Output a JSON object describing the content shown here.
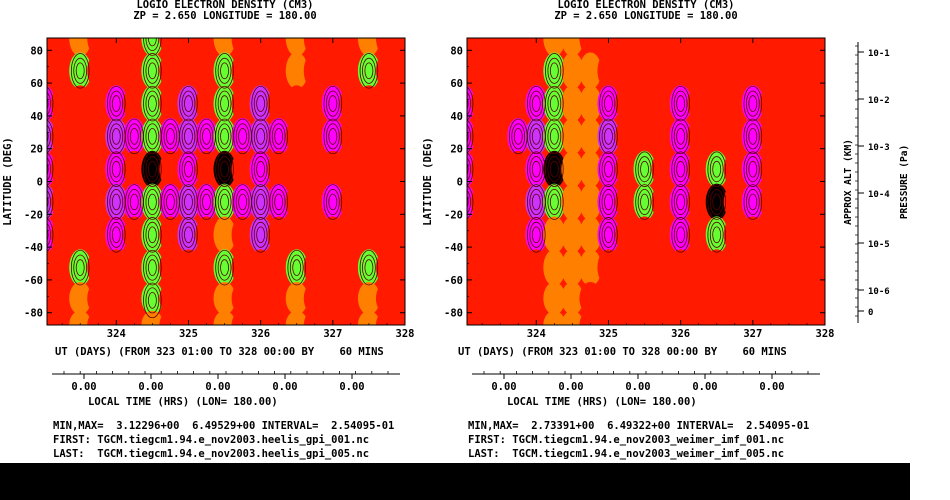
{
  "colors": {
    "red": "#ff1a00",
    "magenta": "#ff00ff",
    "violet": "#cc33ff",
    "orange": "#ff8000",
    "green": "#66ff33",
    "dark": "#000000",
    "contour": "#5a0000"
  },
  "panels": [
    {
      "title1": "LOGIO ELECTRON DENSITY (CM3)",
      "title2": "ZP =      2.650 LONGITUDE =    180.00",
      "ylabel": "LATITUDE (DEG)",
      "y_ticks": [
        "80",
        "60",
        "40",
        "20",
        "0",
        "-20",
        "-40",
        "-60",
        "-80"
      ],
      "x_ticks": [
        "324",
        "325",
        "326",
        "327",
        "328"
      ],
      "ut_line": "UT (DAYS) (FROM 323 01:00 TO 328 00:00 BY    60 MINS",
      "lt_ticks": [
        "0.00",
        "0.00",
        "0.00",
        "0.00",
        "0.00"
      ],
      "lt_label": "LOCAL TIME (HRS) (LON= 180.00)",
      "minmax": "MIN,MAX=  3.12296+00  6.49529+00 INTERVAL=  2.54095-01",
      "first": "FIRST: TGCM.tiegcm1.94.e_nov2003.heelis_gpi_001.nc",
      "last": "LAST:  TGCM.tiegcm1.94.e_nov2003.heelis_gpi_005.nc"
    },
    {
      "title1": "LOGIO ELECTRON DENSITY (CM3)",
      "title2": "ZP =      2.650 LONGITUDE =    180.00",
      "ylabel": "LATITUDE (DEG)",
      "y_ticks": [
        "80",
        "60",
        "40",
        "20",
        "0",
        "-20",
        "-40",
        "-60",
        "-80"
      ],
      "x_ticks": [
        "324",
        "325",
        "326",
        "327",
        "328"
      ],
      "ut_line": "UT (DAYS) (FROM 323 01:00 TO 328 00:00 BY    60 MINS",
      "lt_ticks": [
        "0.00",
        "0.00",
        "0.00",
        "0.00",
        "0.00"
      ],
      "lt_label": "LOCAL TIME (HRS) (LON= 180.00)",
      "minmax": "MIN,MAX=  2.73391+00  6.49322+00 INTERVAL=  2.54095-01",
      "first": "FIRST: TGCM.tiegcm1.94.e_nov2003_weimer_imf_001.nc",
      "last": "LAST:  TGCM.tiegcm1.94.e_nov2003_weimer_imf_005.nc"
    }
  ],
  "right_axis": {
    "ticks": [
      "10-1",
      "10-2",
      "10-3",
      "10-4",
      "10-5",
      "10-6",
      "0"
    ],
    "label1": "APPROX ALT (KM)",
    "label2": "PRESSURE (Pa)"
  },
  "chart_data": [
    {
      "type": "heatmap",
      "title": "LOGIO ELECTRON DENSITY (CM3)",
      "xlabel": "UT (DAYS)",
      "ylabel": "LATITUDE (DEG)",
      "xlim": [
        323.04,
        328.0
      ],
      "ylim": [
        -87.5,
        87.5
      ],
      "zlim": [
        3.12296,
        6.49529
      ],
      "contour_interval": 0.254095,
      "x": [
        323.0,
        323.25,
        323.5,
        323.75,
        324.0,
        324.25,
        324.5,
        324.75,
        325.0,
        325.25,
        325.5,
        325.75,
        326.0,
        326.25,
        326.5,
        326.75,
        327.0,
        327.25,
        327.5,
        327.75,
        328.0
      ],
      "y": [
        87.5,
        67.5,
        47.5,
        27.5,
        7.5,
        -12.5,
        -32.5,
        -52.5,
        -72.5,
        -87.5
      ],
      "z": [
        [
          5.0,
          5.0,
          4.5,
          5.0,
          5.0,
          5.0,
          4.4,
          5.0,
          5.0,
          5.0,
          4.5,
          5.0,
          5.0,
          5.0,
          4.5,
          5.0,
          5.0,
          5.0,
          4.5,
          5.0,
          5.0
        ],
        [
          5.0,
          5.0,
          4.3,
          5.0,
          5.0,
          4.8,
          4.2,
          5.0,
          5.0,
          5.0,
          4.2,
          5.0,
          5.0,
          5.0,
          4.6,
          4.8,
          5.0,
          5.0,
          4.3,
          5.0,
          5.0
        ],
        [
          6.0,
          5.0,
          5.0,
          5.0,
          6.1,
          5.5,
          4.2,
          5.2,
          6.2,
          5.4,
          4.1,
          5.1,
          6.2,
          5.5,
          5.0,
          5.0,
          6.0,
          5.0,
          5.0,
          5.0,
          5.0
        ],
        [
          6.3,
          5.0,
          5.0,
          5.4,
          6.4,
          5.8,
          4.0,
          5.6,
          6.4,
          5.8,
          3.9,
          5.6,
          6.4,
          5.8,
          5.0,
          5.2,
          6.1,
          5.0,
          5.0,
          5.0,
          5.0
        ],
        [
          6.0,
          5.0,
          4.8,
          5.2,
          5.8,
          5.2,
          3.3,
          5.4,
          6.0,
          5.2,
          3.4,
          5.5,
          6.0,
          5.0,
          4.8,
          5.0,
          5.5,
          5.0,
          4.8,
          5.0,
          5.0
        ],
        [
          6.2,
          5.0,
          5.0,
          5.5,
          6.4,
          5.6,
          4.0,
          5.6,
          6.4,
          5.6,
          4.1,
          5.6,
          6.4,
          5.6,
          5.0,
          5.2,
          6.0,
          5.0,
          5.0,
          5.0,
          5.0
        ],
        [
          6.0,
          5.0,
          5.0,
          5.2,
          6.1,
          5.4,
          4.4,
          5.3,
          6.2,
          5.2,
          4.6,
          5.2,
          6.2,
          5.3,
          5.0,
          5.0,
          5.5,
          5.0,
          5.0,
          5.0,
          5.0
        ],
        [
          5.0,
          5.0,
          4.4,
          5.0,
          5.0,
          4.8,
          4.3,
          5.0,
          5.0,
          5.0,
          4.2,
          5.0,
          5.0,
          5.0,
          4.4,
          5.0,
          5.0,
          5.0,
          4.4,
          5.0,
          5.0
        ],
        [
          5.0,
          5.0,
          4.5,
          5.0,
          5.0,
          5.0,
          4.4,
          5.0,
          5.0,
          5.0,
          4.5,
          5.0,
          5.0,
          5.0,
          4.5,
          5.0,
          5.0,
          5.0,
          4.5,
          5.0,
          5.0
        ],
        [
          5.0,
          5.0,
          4.6,
          5.0,
          5.0,
          5.0,
          4.6,
          5.0,
          5.0,
          5.0,
          4.6,
          5.0,
          5.0,
          5.0,
          4.6,
          5.0,
          5.0,
          5.0,
          4.6,
          5.0,
          5.0
        ]
      ]
    },
    {
      "type": "heatmap",
      "title": "LOGIO ELECTRON DENSITY (CM3)",
      "xlabel": "UT (DAYS)",
      "ylabel": "LATITUDE (DEG)",
      "xlim": [
        323.04,
        328.0
      ],
      "ylim": [
        -87.5,
        87.5
      ],
      "zlim": [
        2.73391,
        6.49322
      ],
      "contour_interval": 0.254095,
      "x": [
        323.0,
        323.25,
        323.5,
        323.75,
        324.0,
        324.25,
        324.5,
        324.75,
        325.0,
        325.25,
        325.5,
        325.75,
        326.0,
        326.25,
        326.5,
        326.75,
        327.0,
        327.25,
        327.5,
        327.75,
        328.0
      ],
      "y": [
        87.5,
        67.5,
        47.5,
        27.5,
        7.5,
        -12.5,
        -32.5,
        -52.5,
        -72.5,
        -87.5
      ],
      "z": [
        [
          5.0,
          5.0,
          5.0,
          5.0,
          5.0,
          4.6,
          4.6,
          5.0,
          5.0,
          5.0,
          5.0,
          5.0,
          5.0,
          5.0,
          5.0,
          5.0,
          5.0,
          5.0,
          5.0,
          5.0,
          5.0
        ],
        [
          5.0,
          5.0,
          5.0,
          5.0,
          5.0,
          4.3,
          4.5,
          4.6,
          5.0,
          5.0,
          5.0,
          5.0,
          5.0,
          5.0,
          5.0,
          5.0,
          5.0,
          5.0,
          5.0,
          5.0,
          5.0
        ],
        [
          5.6,
          5.0,
          5.0,
          5.3,
          6.0,
          4.2,
          4.6,
          4.6,
          6.0,
          5.0,
          5.0,
          5.2,
          5.8,
          5.0,
          5.0,
          5.2,
          5.8,
          5.0,
          5.0,
          5.0,
          5.0
        ],
        [
          6.1,
          5.0,
          5.0,
          5.6,
          6.3,
          4.0,
          4.6,
          4.6,
          6.2,
          5.4,
          5.0,
          5.5,
          6.1,
          5.2,
          5.0,
          5.4,
          6.0,
          5.0,
          5.0,
          5.0,
          5.0
        ],
        [
          5.8,
          5.0,
          5.0,
          5.3,
          6.0,
          3.2,
          4.6,
          4.6,
          5.8,
          5.0,
          4.4,
          5.2,
          5.8,
          5.0,
          4.0,
          5.2,
          5.6,
          5.0,
          5.0,
          5.0,
          5.0
        ],
        [
          6.0,
          5.0,
          5.0,
          5.5,
          6.2,
          4.2,
          4.6,
          4.6,
          6.0,
          5.2,
          4.2,
          5.4,
          6.0,
          5.0,
          3.3,
          5.3,
          5.8,
          5.0,
          5.0,
          5.0,
          5.0
        ],
        [
          5.5,
          5.0,
          5.0,
          5.2,
          5.7,
          4.6,
          4.6,
          4.6,
          5.6,
          5.0,
          5.0,
          5.0,
          5.6,
          5.0,
          4.4,
          5.0,
          5.4,
          5.0,
          5.0,
          5.0,
          5.0
        ],
        [
          5.0,
          5.0,
          5.0,
          5.0,
          5.0,
          4.6,
          4.6,
          4.6,
          5.0,
          5.0,
          5.0,
          5.0,
          5.0,
          5.0,
          5.0,
          5.0,
          5.0,
          5.0,
          5.0,
          5.0,
          5.0
        ],
        [
          5.0,
          5.0,
          5.0,
          5.0,
          5.0,
          4.6,
          4.6,
          5.0,
          5.0,
          5.0,
          5.0,
          5.0,
          5.0,
          5.0,
          5.0,
          5.0,
          5.0,
          5.0,
          5.0,
          5.0,
          5.0
        ],
        [
          5.0,
          5.0,
          5.0,
          5.0,
          5.0,
          4.6,
          4.6,
          5.0,
          5.0,
          5.0,
          5.0,
          5.0,
          5.0,
          5.0,
          5.0,
          5.0,
          5.0,
          5.0,
          5.0,
          5.0,
          5.0
        ]
      ]
    }
  ]
}
